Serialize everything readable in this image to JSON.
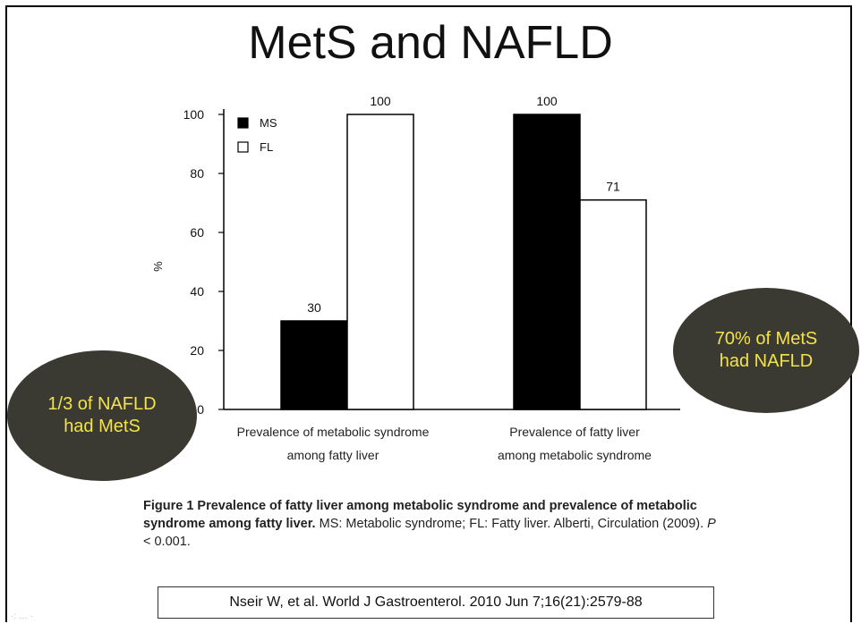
{
  "slide": {
    "title": "MetS and NAFLD"
  },
  "chart_data": {
    "type": "bar",
    "ylabel": "%",
    "ylim": [
      0,
      100
    ],
    "yticks": [
      0,
      20,
      40,
      60,
      80,
      100
    ],
    "grid": false,
    "legend_position": "top-left",
    "categories": [
      [
        "Prevalence of metabolic syndrome",
        "among fatty liver"
      ],
      [
        "Prevalence of fatty liver",
        "among metabolic syndrome"
      ]
    ],
    "series": [
      {
        "name": "MS",
        "color": "#000000",
        "values": [
          30,
          100
        ],
        "labels": [
          "30",
          "100"
        ]
      },
      {
        "name": "FL",
        "color": "#ffffff",
        "values": [
          100,
          71
        ],
        "labels": [
          "100",
          "71"
        ]
      }
    ]
  },
  "annotations": {
    "left_bubble": "1/3 of NAFLD\nhad MetS",
    "right_bubble": "70% of MetS\nhad NAFLD"
  },
  "caption": {
    "bold": "Figure 1  Prevalence of fatty liver among metabolic syndrome and prevalence of metabolic syndrome among fatty liver.",
    "text": " MS: Metabolic syndrome; FL: Fatty liver. Alberti, Circulation (2009). ",
    "p_label": "P",
    "p_value": " < 0.001."
  },
  "citation": "Nseir W, et al. World J Gastroenterol. 2010 Jun 7;16(21):2579-88",
  "watermark": "·: … ·"
}
